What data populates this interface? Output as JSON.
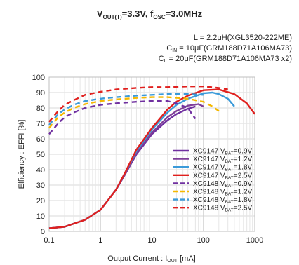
{
  "chart_data": {
    "type": "line",
    "title": {
      "v": "V",
      "v_sub": "OUT(T)",
      "v_val": "=3.3V, f",
      "f_sub": "OSC",
      "f_val": "=3.0MHz"
    },
    "conditions": [
      {
        "pre": "L = 2.2μH(XGL3520-222ME)"
      },
      {
        "pre": "C",
        "sub": "IN",
        "post": " = 10μF(GRM188D71A106MA73)"
      },
      {
        "pre": "C",
        "sub": "L",
        "post": " = 20μF(GRM188D71A106MA73 x2)"
      }
    ],
    "xlabel": {
      "pre": "Output Current : I",
      "sub": "OUT",
      "post": " [mA]"
    },
    "ylabel": "Efficiency : EFFI  [%]",
    "x_scale": "log",
    "xlim": [
      0.1,
      1000
    ],
    "ylim": [
      0,
      100
    ],
    "x_ticks": [
      {
        "value": 0.1,
        "label": "0.1"
      },
      {
        "value": 1,
        "label": "1"
      },
      {
        "value": 10,
        "label": "10"
      },
      {
        "value": 100,
        "label": "100"
      },
      {
        "value": 1000,
        "label": "1000"
      }
    ],
    "y_ticks": [
      0,
      10,
      20,
      30,
      40,
      50,
      60,
      70,
      80,
      90,
      100
    ],
    "grid": true,
    "legend_position": "lower-right",
    "series": [
      {
        "name": {
          "pre": "XC9147  V",
          "sub": "BAT",
          "post": "=0.9V"
        },
        "color": "#7030a0",
        "dash": false,
        "points": [
          [
            0.1,
            2
          ],
          [
            0.2,
            3
          ],
          [
            0.5,
            7.5
          ],
          [
            1,
            14
          ],
          [
            2,
            27
          ],
          [
            3,
            37
          ],
          [
            5,
            50
          ],
          [
            10,
            63
          ],
          [
            20,
            72
          ],
          [
            30,
            76
          ],
          [
            50,
            79.5
          ],
          [
            70,
            81
          ]
        ]
      },
      {
        "name": {
          "pre": "XC9147  V",
          "sub": "BAT",
          "post": "=1.2V"
        },
        "color": "#7f3f98",
        "dash": false,
        "points": [
          [
            0.1,
            2
          ],
          [
            0.2,
            3
          ],
          [
            0.5,
            7.5
          ],
          [
            1,
            14
          ],
          [
            2,
            27
          ],
          [
            3,
            37
          ],
          [
            5,
            51
          ],
          [
            10,
            64
          ],
          [
            20,
            74
          ],
          [
            30,
            78
          ],
          [
            50,
            81.5
          ],
          [
            80,
            82.5
          ],
          [
            100,
            81
          ]
        ]
      },
      {
        "name": {
          "pre": "XC9147  V",
          "sub": "BAT",
          "post": "=1.8V"
        },
        "color": "#3a9ad9",
        "dash": false,
        "points": [
          [
            0.1,
            2
          ],
          [
            0.2,
            3
          ],
          [
            0.5,
            7.5
          ],
          [
            1,
            14
          ],
          [
            2,
            27
          ],
          [
            3,
            38
          ],
          [
            5,
            52
          ],
          [
            10,
            66
          ],
          [
            20,
            77
          ],
          [
            30,
            82
          ],
          [
            50,
            86
          ],
          [
            100,
            89.5
          ],
          [
            150,
            90
          ],
          [
            200,
            89
          ],
          [
            300,
            86
          ],
          [
            400,
            81
          ]
        ]
      },
      {
        "name": {
          "pre": "XC9147  V",
          "sub": "BAT",
          "post": "=2.5V"
        },
        "color": "#e0201e",
        "dash": false,
        "points": [
          [
            0.1,
            2
          ],
          [
            0.2,
            3
          ],
          [
            0.5,
            7.5
          ],
          [
            1,
            14
          ],
          [
            2,
            27
          ],
          [
            3,
            38
          ],
          [
            5,
            53
          ],
          [
            10,
            67
          ],
          [
            20,
            79
          ],
          [
            30,
            84
          ],
          [
            50,
            88
          ],
          [
            100,
            91.5
          ],
          [
            200,
            92
          ],
          [
            400,
            89
          ],
          [
            700,
            83
          ],
          [
            1000,
            76
          ]
        ]
      },
      {
        "name": {
          "pre": "XC9148  V",
          "sub": "BAT",
          "post": "=0.9V"
        },
        "color": "#7030a0",
        "dash": true,
        "points": [
          [
            0.1,
            63
          ],
          [
            0.15,
            70
          ],
          [
            0.2,
            74
          ],
          [
            0.3,
            77
          ],
          [
            0.5,
            80
          ],
          [
            1,
            82
          ],
          [
            2,
            83
          ],
          [
            5,
            84
          ],
          [
            10,
            84.5
          ],
          [
            20,
            84.5
          ],
          [
            30,
            83
          ],
          [
            50,
            80
          ],
          [
            60,
            76
          ],
          [
            70,
            73
          ]
        ]
      },
      {
        "name": {
          "pre": "XC9148  V",
          "sub": "BAT",
          "post": "=1.2V"
        },
        "color": "#f5b800",
        "dash": true,
        "points": [
          [
            0.1,
            67
          ],
          [
            0.15,
            74
          ],
          [
            0.2,
            77
          ],
          [
            0.3,
            80
          ],
          [
            0.5,
            82.5
          ],
          [
            1,
            84.5
          ],
          [
            2,
            85.5
          ],
          [
            5,
            86.5
          ],
          [
            10,
            87
          ],
          [
            20,
            87
          ],
          [
            50,
            86
          ],
          [
            100,
            84
          ],
          [
            150,
            81
          ],
          [
            200,
            78
          ]
        ]
      },
      {
        "name": {
          "pre": "XC9148  V",
          "sub": "BAT",
          "post": "=1.8V"
        },
        "color": "#3a9ad9",
        "dash": true,
        "points": [
          [
            0.1,
            69
          ],
          [
            0.15,
            76
          ],
          [
            0.2,
            79
          ],
          [
            0.3,
            82
          ],
          [
            0.5,
            84.5
          ],
          [
            1,
            86
          ],
          [
            2,
            87
          ],
          [
            5,
            88
          ],
          [
            10,
            88.5
          ],
          [
            20,
            89
          ],
          [
            50,
            89
          ],
          [
            100,
            88.5
          ]
        ]
      },
      {
        "name": {
          "pre": "XC9148  V",
          "sub": "BAT",
          "post": "=2.5V"
        },
        "color": "#e0201e",
        "dash": true,
        "points": [
          [
            0.1,
            71
          ],
          [
            0.15,
            78
          ],
          [
            0.2,
            82
          ],
          [
            0.3,
            85
          ],
          [
            0.5,
            88.5
          ],
          [
            1,
            90.5
          ],
          [
            2,
            92
          ],
          [
            5,
            93
          ],
          [
            10,
            93.5
          ],
          [
            20,
            93.5
          ],
          [
            50,
            94
          ],
          [
            100,
            94
          ],
          [
            200,
            93
          ],
          [
            300,
            92
          ]
        ]
      }
    ]
  }
}
